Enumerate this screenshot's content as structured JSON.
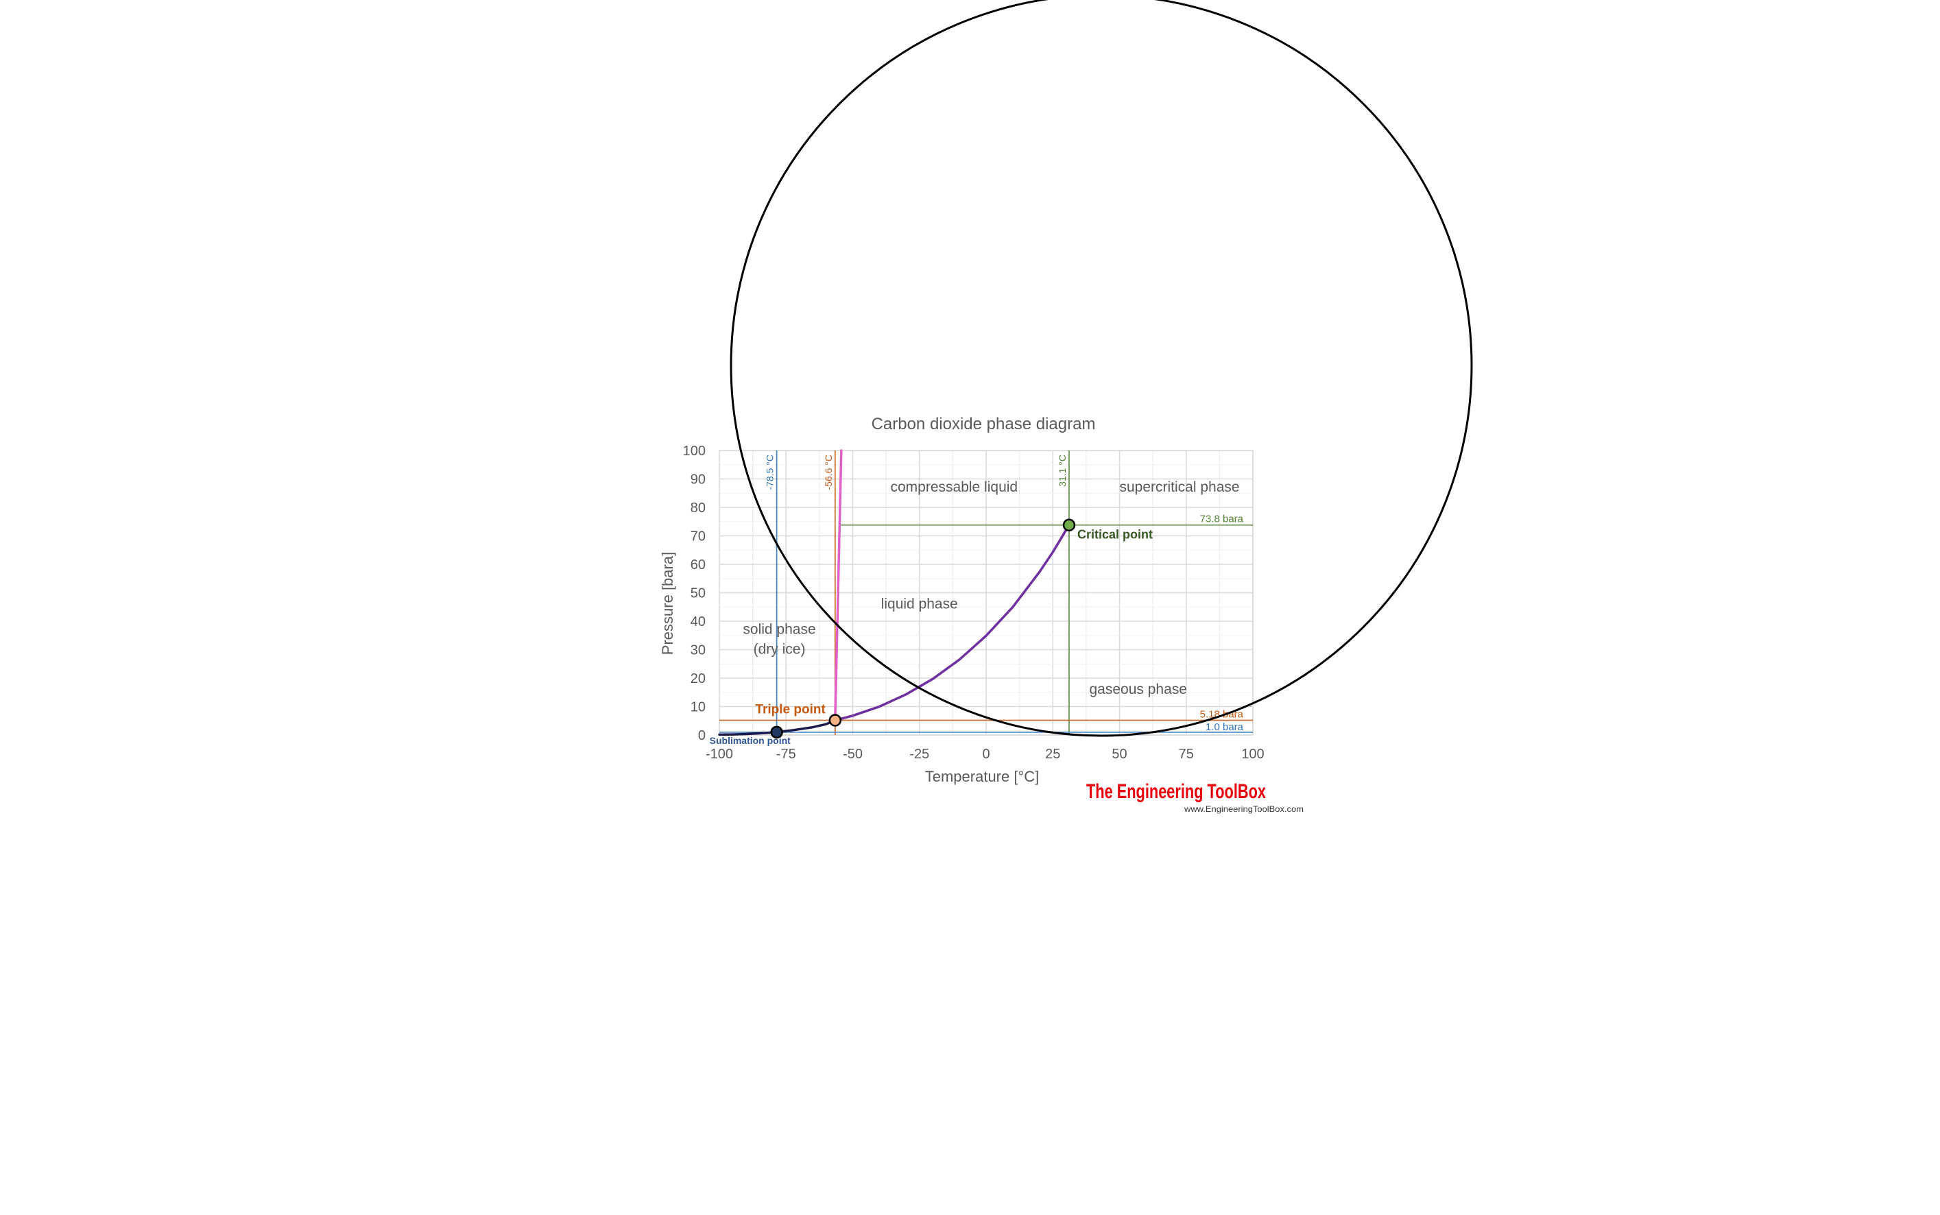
{
  "chart_data": {
    "type": "line",
    "title": "Carbon dioxide phase diagram",
    "xlabel": "Temperature [°C]",
    "ylabel": "Pressure [bara]",
    "xlim": [
      -100,
      100
    ],
    "ylim": [
      0,
      100
    ],
    "xticks": [
      -100,
      -75,
      -50,
      -25,
      0,
      25,
      50,
      75,
      100
    ],
    "yticks": [
      0,
      10,
      20,
      30,
      40,
      50,
      60,
      70,
      80,
      90,
      100
    ],
    "xtick_labels": [
      "-100",
      "-75",
      "-50",
      "-25",
      "0",
      "25",
      "50",
      "75",
      "100"
    ],
    "ytick_labels": [
      "0",
      "10",
      "20",
      "30",
      "40",
      "50",
      "60",
      "70",
      "80",
      "90",
      "100"
    ],
    "grid": true,
    "series": [
      {
        "name": "",
        "kind": "sublimation-curve",
        "color": "#1a1a4d",
        "points": [
          [
            -100,
            0.14
          ],
          [
            -95,
            0.22
          ],
          [
            -90,
            0.37
          ],
          [
            -85,
            0.6
          ],
          [
            -78.5,
            1.0
          ],
          [
            -72,
            1.75
          ],
          [
            -65,
            2.75
          ],
          [
            -60,
            3.8
          ],
          [
            -56.6,
            5.18
          ]
        ]
      },
      {
        "name": "",
        "kind": "vapor-pressure-curve",
        "color": "#7030a0",
        "points": [
          [
            -56.6,
            5.18
          ],
          [
            -50,
            6.8
          ],
          [
            -40,
            10.0
          ],
          [
            -30,
            14.3
          ],
          [
            -20,
            19.7
          ],
          [
            -10,
            26.5
          ],
          [
            0,
            34.9
          ],
          [
            10,
            45.0
          ],
          [
            20,
            57.3
          ],
          [
            25,
            64.3
          ],
          [
            31.1,
            73.8
          ]
        ]
      },
      {
        "name": "",
        "kind": "melting-curve",
        "color": "#e060c8",
        "points": [
          [
            -56.6,
            5.18
          ],
          [
            -55.0,
            70.0
          ],
          [
            -54.3,
            100.0
          ]
        ]
      }
    ],
    "key_points": [
      {
        "label": "Triple point",
        "x": -56.6,
        "y": 5.18,
        "color": "#c55a11",
        "fill": "#f4b183"
      },
      {
        "label": "Critical point",
        "x": 31.1,
        "y": 73.8,
        "color": "#385723",
        "fill": "#70ad47"
      },
      {
        "label": "Sublimation point",
        "x": -78.5,
        "y": 1.0,
        "color": "#2f5597",
        "fill": "#1f3864"
      }
    ],
    "reference_lines": [
      {
        "orientation": "vertical",
        "value": -78.5,
        "label": "-78.5 °C",
        "color": "#2e75b6"
      },
      {
        "orientation": "vertical",
        "value": -56.6,
        "label": "-56.6 °C",
        "color": "#c55a11"
      },
      {
        "orientation": "vertical",
        "value": 31.1,
        "label": "31.1 °C",
        "color": "#548235"
      },
      {
        "orientation": "horizontal",
        "value": 73.8,
        "label": "73.8 bara",
        "color": "#548235"
      },
      {
        "orientation": "horizontal",
        "value": 5.18,
        "label": "5.18 bara",
        "color": "#c55a11"
      },
      {
        "orientation": "horizontal",
        "value": 1.0,
        "label": "1.0 bara",
        "color": "#2e75b6"
      }
    ],
    "region_labels": [
      {
        "text": "compressable liquid",
        "x": -12,
        "y": 85.5
      },
      {
        "text": "supercritical phase",
        "x": 72.5,
        "y": 85.5
      },
      {
        "text": "liquid phase",
        "x": -25,
        "y": 44.5
      },
      {
        "text": "solid phase",
        "x": -77.5,
        "y": 35.5
      },
      {
        "text": "(dry ice)",
        "x": -77.5,
        "y": 28.5
      },
      {
        "text": "gaseous phase",
        "x": 57,
        "y": 14.5
      }
    ]
  },
  "annotation_circle": {
    "color": "#000000"
  },
  "logo": {
    "title": "The Engineering ToolBox",
    "url": "www.EngineeringToolBox.com",
    "color": "#e8000b"
  }
}
